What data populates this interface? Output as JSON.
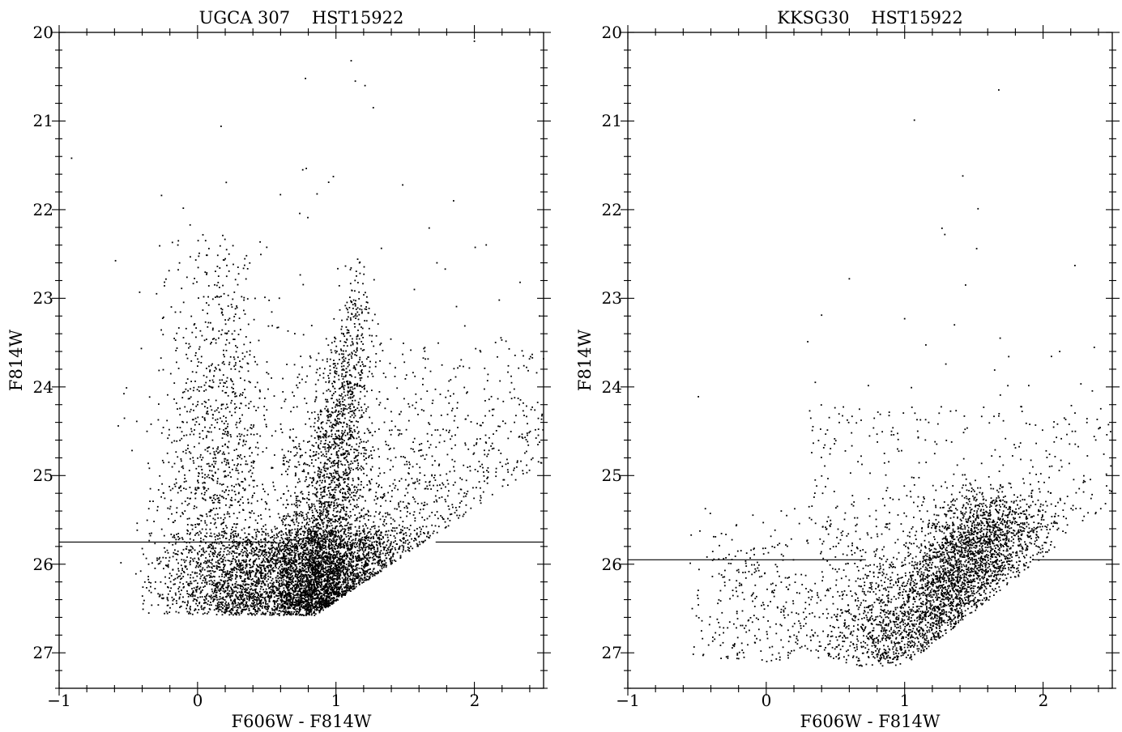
{
  "chart_data": [
    {
      "type": "scatter",
      "title": "UGCA 307    HST15922",
      "xlabel": "F606W - F814W",
      "ylabel": "F814W",
      "xlim": [
        -1.0,
        2.5
      ],
      "ylim": [
        27.4,
        20.0
      ],
      "y_inverted": true,
      "x_ticks": [
        -1,
        0,
        1,
        2
      ],
      "x_tick_labels": [
        "−1",
        "0",
        "1",
        "2"
      ],
      "y_ticks": [
        20,
        21,
        22,
        23,
        24,
        25,
        26,
        27
      ],
      "y_tick_labels": [
        "20",
        "21",
        "22",
        "23",
        "24",
        "25",
        "26",
        "27"
      ],
      "completeness_line": {
        "y": 25.75,
        "gap_x": [
          0.55,
          1.72
        ]
      },
      "distribution": {
        "blue_plume": {
          "color_center": 0.15,
          "color_spread": 0.28,
          "mag_top": 22.2,
          "mag_bottom": 26.5,
          "count": 1500
        },
        "rgb": {
          "tip_mag": 22.5,
          "tip_color": 1.2,
          "base_color": 0.85,
          "base_mag": 26.5,
          "count": 2000
        },
        "red_spread": {
          "mag_top": 23.3,
          "mag_bottom": 26.5,
          "count": 1900
        },
        "faint_dense": {
          "color_min": -0.4,
          "color_max": 1.6,
          "mag_top": 25.6,
          "mag_bottom": 26.58,
          "count": 4200
        },
        "bright_outliers": {
          "count": 70
        }
      },
      "points": [
        {
          "x": 1.11,
          "y": 20.32
        },
        {
          "x": 0.78,
          "y": 20.52
        },
        {
          "x": 1.14,
          "y": 20.55
        },
        {
          "x": 1.21,
          "y": 20.6
        },
        {
          "x": 2.0,
          "y": 20.1
        },
        {
          "x": 1.27,
          "y": 20.85
        },
        {
          "x": 0.17,
          "y": 21.06
        },
        {
          "x": -0.91,
          "y": 21.42
        },
        {
          "x": 0.76,
          "y": 21.55
        },
        {
          "x": -0.26,
          "y": 21.84
        },
        {
          "x": 1.85,
          "y": 21.9
        },
        {
          "x": 2.33,
          "y": 22.82
        },
        {
          "x": 2.47,
          "y": 23.2
        },
        {
          "x": 1.73,
          "y": 22.6
        },
        {
          "x": 2.18,
          "y": 23.02
        }
      ]
    },
    {
      "type": "scatter",
      "title": "KKSG30    HST15922",
      "xlabel": "F606W - F814W",
      "ylabel": "F814W",
      "xlim": [
        -1.0,
        2.5
      ],
      "ylim": [
        27.4,
        20.0
      ],
      "y_inverted": true,
      "x_ticks": [
        -1,
        0,
        1,
        2
      ],
      "x_tick_labels": [
        "−1",
        "0",
        "1",
        "2"
      ],
      "y_ticks": [
        20,
        21,
        22,
        23,
        24,
        25,
        26,
        27
      ],
      "y_tick_labels": [
        "20",
        "21",
        "22",
        "23",
        "24",
        "25",
        "26",
        "27"
      ],
      "completeness_line": {
        "y": 25.95,
        "gap_x": [
          0.72,
          1.92
        ]
      },
      "distribution": {
        "main_clump": {
          "count": 3600
        },
        "blue_spread": {
          "color_min": -0.55,
          "color_max": 0.9,
          "mag_top": 25.3,
          "mag_bottom": 27.1,
          "count": 650
        },
        "upper_red": {
          "color_min": 0.3,
          "color_max": 2.5,
          "mag_top": 24.2,
          "mag_bottom": 25.6,
          "count": 300
        },
        "bright_outliers": {
          "count": 25
        }
      },
      "points": [
        {
          "x": 1.68,
          "y": 20.65
        },
        {
          "x": 1.07,
          "y": 20.99
        },
        {
          "x": 1.42,
          "y": 21.62
        },
        {
          "x": 1.53,
          "y": 21.99
        },
        {
          "x": 1.27,
          "y": 22.21
        },
        {
          "x": 1.29,
          "y": 22.28
        },
        {
          "x": 1.52,
          "y": 22.44
        },
        {
          "x": 2.23,
          "y": 22.63
        },
        {
          "x": 0.6,
          "y": 22.78
        },
        {
          "x": 1.44,
          "y": 22.85
        },
        {
          "x": 0.4,
          "y": 23.19
        },
        {
          "x": 1.0,
          "y": 23.23
        },
        {
          "x": 1.36,
          "y": 23.3
        },
        {
          "x": 0.3,
          "y": 23.49
        },
        {
          "x": 1.69,
          "y": 23.45
        },
        {
          "x": 2.12,
          "y": 23.6
        },
        {
          "x": -0.49,
          "y": 24.11
        }
      ]
    }
  ]
}
